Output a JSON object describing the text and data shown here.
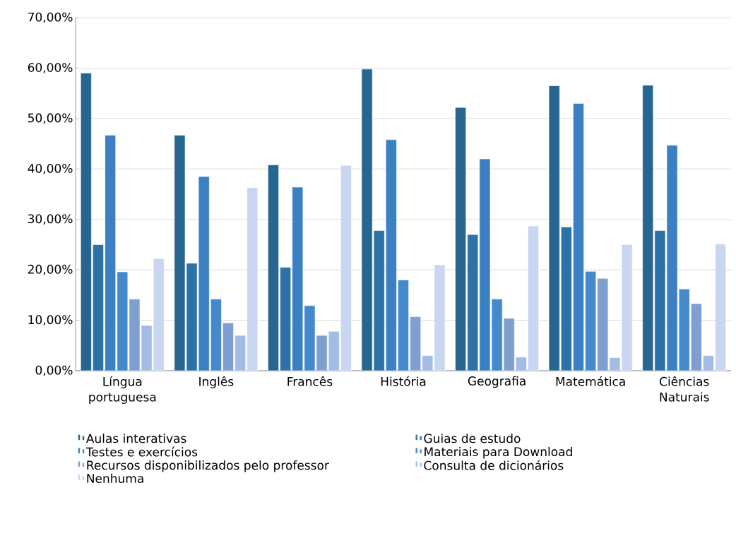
{
  "chart_data": {
    "type": "bar",
    "categories": [
      "Língua portuguesa",
      "Inglês",
      "Francês",
      "História",
      "Geografia",
      "Matemática",
      "Ciências Naturais"
    ],
    "series": [
      {
        "name": "Aulas interativas",
        "color": "#276690",
        "values": [
          59.0,
          46.7,
          40.8,
          59.8,
          52.2,
          56.5,
          56.6
        ]
      },
      {
        "name": "Guias de estudo",
        "color": "#2d72a6",
        "values": [
          25.0,
          21.3,
          20.5,
          27.8,
          27.0,
          28.5,
          27.8
        ]
      },
      {
        "name": "Testes e exercícios",
        "color": "#3a80c2",
        "values": [
          46.7,
          38.5,
          36.4,
          45.8,
          42.0,
          53.0,
          44.7
        ]
      },
      {
        "name": "Materiais para Download",
        "color": "#4489cc",
        "values": [
          19.6,
          14.2,
          12.9,
          18.0,
          14.2,
          19.7,
          16.2
        ]
      },
      {
        "name": "Recursos disponibilizados pelo professor",
        "color": "#7f9fd0",
        "values": [
          14.2,
          9.5,
          7.0,
          10.7,
          10.4,
          18.3,
          13.3
        ]
      },
      {
        "name": "Consulta de dicionários",
        "color": "#a2bce6",
        "values": [
          9.0,
          7.0,
          7.8,
          3.0,
          2.7,
          2.6,
          3.0
        ]
      },
      {
        "name": "Nenhuma",
        "color": "#c8d6f2",
        "values": [
          22.2,
          36.3,
          40.7,
          21.0,
          28.7,
          25.0,
          25.1
        ]
      }
    ],
    "ylim": [
      0,
      70
    ],
    "yticks": [
      {
        "value": 0,
        "label": "0,00%"
      },
      {
        "value": 10,
        "label": "10,00%"
      },
      {
        "value": 20,
        "label": "20,00%"
      },
      {
        "value": 30,
        "label": "30,00%"
      },
      {
        "value": 40,
        "label": "40,00%"
      },
      {
        "value": 50,
        "label": "50,00%"
      },
      {
        "value": 60,
        "label": "60,00%"
      },
      {
        "value": 70,
        "label": "70,00%"
      }
    ],
    "grid": "y",
    "legend": "bottom"
  }
}
